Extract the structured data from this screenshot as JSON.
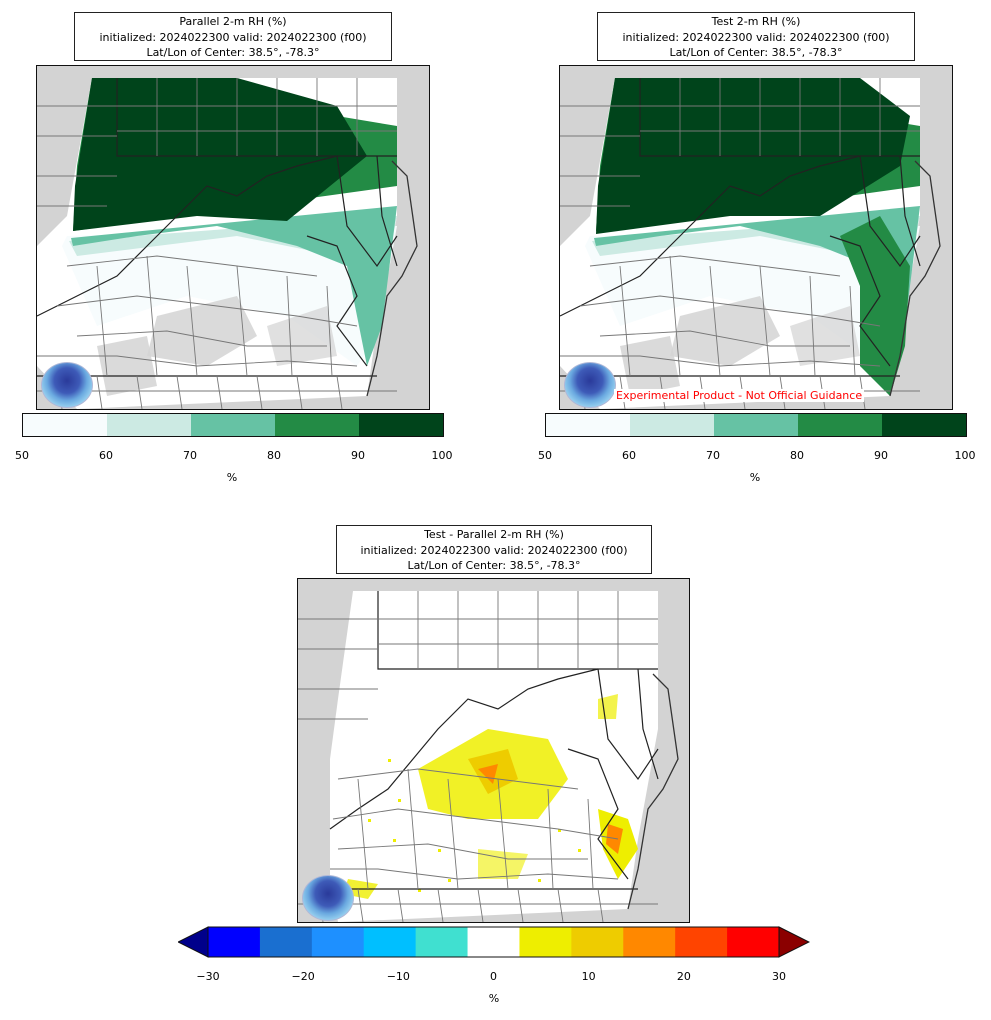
{
  "panels": [
    {
      "title_line1": "Parallel 2-m RH (%)",
      "title_line2": "initialized: 2024022300 valid: 2024022300 (f00)",
      "title_line3": "Lat/Lon of Center: 38.5°, -78.3°",
      "logo": "noaa-logo",
      "watermark": ""
    },
    {
      "title_line1": "Test 2-m RH (%)",
      "title_line2": "initialized: 2024022300 valid: 2024022300 (f00)",
      "title_line3": "Lat/Lon of Center: 38.5°, -78.3°",
      "logo": "noaa-logo",
      "watermark": "Experimental Product - Not Official Guidance"
    },
    {
      "title_line1": "Test - Parallel 2-m RH (%)",
      "title_line2": "initialized: 2024022300 valid: 2024022300 (f00)",
      "title_line3": "Lat/Lon of Center: 38.5°, -78.3°",
      "logo": "noaa-logo",
      "watermark": ""
    }
  ],
  "colorbar_rh": {
    "unit": "%",
    "bounds": [
      50,
      60,
      70,
      80,
      90,
      100
    ],
    "tick_labels": [
      "50",
      "60",
      "70",
      "80",
      "90",
      "100"
    ],
    "colors": [
      "#f7fcfd",
      "#cceae3",
      "#66c2a4",
      "#238b45",
      "#00441b"
    ]
  },
  "colorbar_diff": {
    "unit": "%",
    "bounds": [
      -30,
      -25,
      -20,
      -15,
      -10,
      -5,
      5,
      10,
      15,
      20,
      25,
      30
    ],
    "tick_labels": [
      "−30",
      "−20",
      "−10",
      "0",
      "10",
      "20",
      "30"
    ],
    "tick_values": [
      -30,
      -20,
      -10,
      0,
      10,
      20,
      30
    ],
    "colors": [
      "#0000ff",
      "#1a6fd0",
      "#1e90ff",
      "#00bfff",
      "#40e0d0",
      "#ffffff",
      "#eeee00",
      "#eecc00",
      "#ff8800",
      "#ff4400",
      "#ff0000"
    ],
    "extend_low_color": "#00008b",
    "extend_high_color": "#8b0000"
  }
}
